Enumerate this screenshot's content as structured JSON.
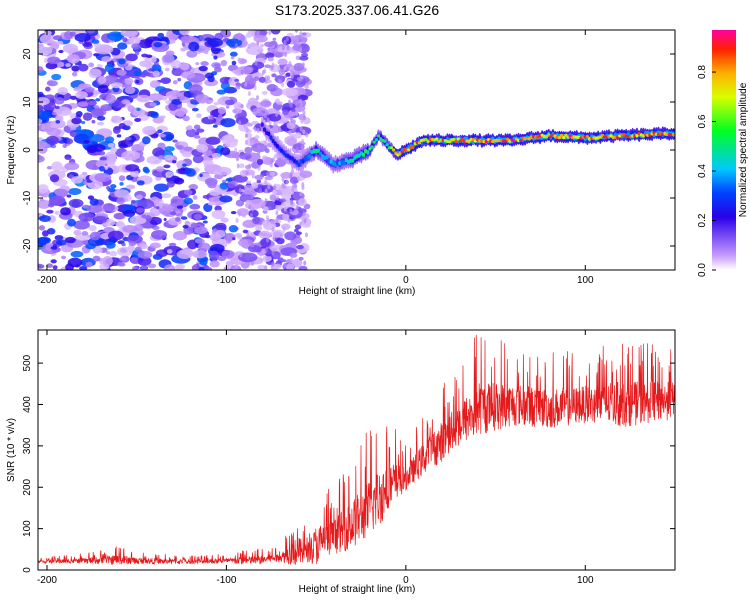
{
  "title": "S173.2025.337.06.41.G26",
  "chart_data": [
    {
      "type": "heatmap",
      "xlabel": "Height of straight line (km)",
      "ylabel": "Frequency (Hz)",
      "xlim": [
        -205,
        150
      ],
      "ylim": [
        -25,
        25
      ],
      "xticks": [
        -200,
        -100,
        0,
        100
      ],
      "yticks": [
        -20,
        -10,
        0,
        10,
        20
      ],
      "colorbar": {
        "label": "Normalized spectral amplitude",
        "range": [
          0,
          0.97
        ],
        "ticks": [
          0.0,
          0.2,
          0.4,
          0.6,
          0.8
        ]
      },
      "ridge": {
        "x": [
          -80,
          -70,
          -60,
          -50,
          -40,
          -30,
          -20,
          -15,
          -10,
          -5,
          0,
          10,
          20,
          40,
          60,
          80,
          100,
          120,
          150
        ],
        "freq": [
          5,
          0,
          -3,
          0,
          -3,
          -2,
          0,
          3,
          1,
          -1,
          0,
          2,
          2,
          2,
          2,
          3,
          2.5,
          3,
          3.5
        ],
        "amplitude": [
          0.25,
          0.3,
          0.3,
          0.5,
          0.4,
          0.5,
          0.6,
          0.55,
          0.55,
          0.9,
          0.95,
          0.85,
          0.9,
          0.95,
          0.95,
          0.95,
          0.95,
          0.9,
          0.95
        ]
      }
    },
    {
      "type": "line",
      "xlabel": "Height of straight line (km)",
      "ylabel": "SNR (10 * v/v)",
      "xlim": [
        -205,
        150
      ],
      "ylim": [
        0,
        580
      ],
      "xticks": [
        -200,
        -100,
        0,
        100
      ],
      "yticks": [
        0,
        100,
        200,
        300,
        400,
        500
      ],
      "series": [
        {
          "name": "SNR",
          "color": "#e41a1c",
          "x": [
            -205,
            -180,
            -160,
            -150,
            -120,
            -100,
            -90,
            -80,
            -70,
            -60,
            -55,
            -50,
            -40,
            -30,
            -20,
            -10,
            0,
            10,
            20,
            30,
            40,
            60,
            80,
            100,
            120,
            150
          ],
          "mean": [
            20,
            22,
            25,
            22,
            20,
            22,
            22,
            25,
            30,
            45,
            40,
            60,
            80,
            110,
            150,
            200,
            220,
            270,
            310,
            350,
            390,
            400,
            390,
            400,
            400,
            410
          ],
          "peak": [
            30,
            40,
            60,
            45,
            35,
            40,
            50,
            55,
            60,
            150,
            100,
            200,
            200,
            280,
            350,
            400,
            300,
            380,
            450,
            500,
            580,
            550,
            530,
            530,
            560,
            540
          ]
        }
      ]
    }
  ]
}
